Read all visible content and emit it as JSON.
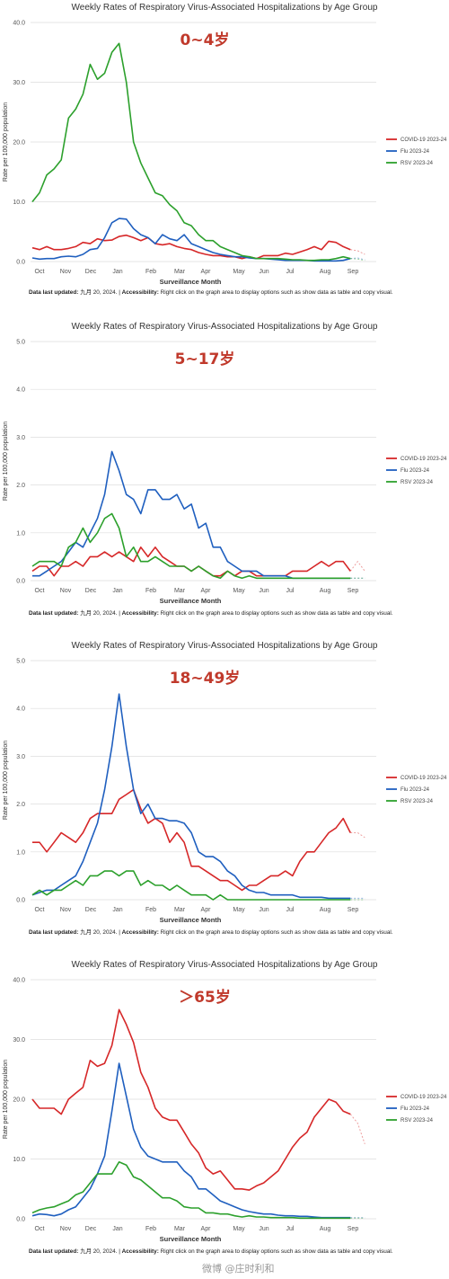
{
  "months": [
    "Oct",
    "Nov",
    "Dec",
    "Jan",
    "Feb",
    "Mar",
    "Apr",
    "May",
    "Jun",
    "Jul",
    "Aug",
    "Sep"
  ],
  "x_axis_label": "Surveillance Month",
  "y_axis_label": "Rate per 100,000 population",
  "footer": {
    "updated_label": "Data last updated:",
    "updated_value": "九月 20, 2024.",
    "separator": "|",
    "accessibility_label": "Accessibility:",
    "accessibility_text": "Right click on the graph area to display options such as show data as table and copy visual."
  },
  "watermark": "微博 @庄时利和",
  "colors": {
    "covid": "#d62728",
    "flu": "#1f5fbf",
    "rsv": "#2ca02c",
    "grid": "#dddddd",
    "title_accent": "#c0392b"
  },
  "chart_data": [
    {
      "type": "line",
      "title": "Weekly Rates of Respiratory Virus-Associated Hospitalizations by Age Group",
      "age_group": "0~4岁",
      "xlabel": "Surveillance Month",
      "ylabel": "Rate per 100,000 population",
      "ylim": [
        0,
        40
      ],
      "yticks": [
        "0.0",
        "10.0",
        "20.0",
        "30.0",
        "40.0"
      ],
      "legend_position": "right",
      "series": [
        {
          "name": "COVID-19 2023-24",
          "key": "covid",
          "values": [
            2.3,
            2.0,
            2.5,
            2.0,
            2.0,
            2.2,
            2.5,
            3.2,
            3.0,
            3.8,
            3.5,
            3.6,
            4.2,
            4.4,
            4.0,
            3.5,
            4.0,
            3.0,
            2.8,
            3.0,
            2.5,
            2.2,
            2.0,
            1.5,
            1.2,
            1.0,
            1.0,
            0.8,
            0.8,
            0.5,
            0.8,
            0.5,
            1.0,
            1.0,
            1.0,
            1.4,
            1.2,
            1.6,
            2.0,
            2.5,
            2.0,
            3.4,
            3.2,
            2.5,
            2.0
          ],
          "tail": [
            1.8,
            1.2
          ]
        },
        {
          "name": "Flu 2023-24",
          "key": "flu",
          "values": [
            0.6,
            0.4,
            0.5,
            0.5,
            0.8,
            0.9,
            0.8,
            1.2,
            2.0,
            2.2,
            4.0,
            6.5,
            7.2,
            7.1,
            5.5,
            4.5,
            4.0,
            3.0,
            4.5,
            3.8,
            3.5,
            4.5,
            3.0,
            2.5,
            2.0,
            1.5,
            1.2,
            1.0,
            0.8,
            0.8,
            0.6,
            0.5,
            0.5,
            0.4,
            0.3,
            0.2,
            0.2,
            0.2,
            0.2,
            0.1,
            0.1,
            0.1,
            0.1,
            0.2,
            0.5
          ],
          "tail": [
            0.6,
            0.3
          ]
        },
        {
          "name": "RSV 2023-24",
          "key": "rsv",
          "values": [
            10.0,
            11.5,
            14.5,
            15.5,
            17.0,
            24.0,
            25.5,
            28.0,
            33.0,
            30.5,
            31.5,
            35.0,
            36.5,
            30.0,
            20.0,
            16.5,
            14.0,
            11.5,
            11.0,
            9.5,
            8.5,
            6.5,
            6.0,
            4.5,
            3.5,
            3.5,
            2.5,
            2.0,
            1.5,
            1.0,
            0.8,
            0.5,
            0.5,
            0.5,
            0.5,
            0.4,
            0.3,
            0.3,
            0.2,
            0.2,
            0.3,
            0.3,
            0.5,
            0.8,
            0.5
          ],
          "tail": [
            0.4,
            0.2
          ]
        }
      ]
    },
    {
      "type": "line",
      "title": "Weekly Rates of Respiratory Virus-Associated Hospitalizations by Age Group",
      "age_group": "5~17岁",
      "xlabel": "Surveillance Month",
      "ylabel": "Rate per 100,000 population",
      "ylim": [
        0,
        5
      ],
      "yticks": [
        "0.0",
        "1.0",
        "2.0",
        "3.0",
        "4.0",
        "5.0"
      ],
      "legend_position": "right",
      "series": [
        {
          "name": "COVID-19 2023-24",
          "key": "covid",
          "values": [
            0.2,
            0.3,
            0.3,
            0.1,
            0.3,
            0.3,
            0.4,
            0.3,
            0.5,
            0.5,
            0.6,
            0.5,
            0.6,
            0.5,
            0.4,
            0.7,
            0.5,
            0.7,
            0.5,
            0.4,
            0.3,
            0.3,
            0.2,
            0.3,
            0.2,
            0.1,
            0.1,
            0.2,
            0.1,
            0.2,
            0.2,
            0.1,
            0.1,
            0.1,
            0.1,
            0.1,
            0.2,
            0.2,
            0.2,
            0.3,
            0.4,
            0.3,
            0.4,
            0.4,
            0.2
          ],
          "tail": [
            0.4,
            0.2
          ]
        },
        {
          "name": "Flu 2023-24",
          "key": "flu",
          "values": [
            0.1,
            0.1,
            0.2,
            0.3,
            0.4,
            0.6,
            0.8,
            0.7,
            1.0,
            1.3,
            1.8,
            2.7,
            2.3,
            1.8,
            1.7,
            1.4,
            1.9,
            1.9,
            1.7,
            1.7,
            1.8,
            1.5,
            1.6,
            1.1,
            1.2,
            0.7,
            0.7,
            0.4,
            0.3,
            0.2,
            0.2,
            0.2,
            0.1,
            0.1,
            0.1,
            0.1,
            0.05,
            0.05,
            0.05,
            0.05,
            0.05,
            0.05,
            0.05,
            0.05,
            0.05
          ],
          "tail": [
            0.05,
            0.05
          ]
        },
        {
          "name": "RSV 2023-24",
          "key": "rsv",
          "values": [
            0.3,
            0.4,
            0.4,
            0.4,
            0.3,
            0.7,
            0.8,
            1.1,
            0.8,
            1.0,
            1.3,
            1.4,
            1.1,
            0.5,
            0.7,
            0.4,
            0.4,
            0.5,
            0.4,
            0.3,
            0.3,
            0.3,
            0.2,
            0.3,
            0.2,
            0.1,
            0.05,
            0.2,
            0.1,
            0.05,
            0.1,
            0.05,
            0.05,
            0.05,
            0.05,
            0.05,
            0.05,
            0.05,
            0.05,
            0.05,
            0.05,
            0.05,
            0.05,
            0.05,
            0.05
          ],
          "tail": [
            0.05,
            0.05
          ]
        }
      ]
    },
    {
      "type": "line",
      "title": "Weekly Rates of Respiratory Virus-Associated Hospitalizations by Age Group",
      "age_group": "18~49岁",
      "xlabel": "Surveillance Month",
      "ylabel": "Rate per 100,000 population",
      "ylim": [
        0,
        5
      ],
      "yticks": [
        "0.0",
        "1.0",
        "2.0",
        "3.0",
        "4.0",
        "5.0"
      ],
      "legend_position": "right",
      "series": [
        {
          "name": "COVID-19 2023-24",
          "key": "covid",
          "values": [
            1.2,
            1.2,
            1.0,
            1.2,
            1.4,
            1.3,
            1.2,
            1.4,
            1.7,
            1.8,
            1.8,
            1.8,
            2.1,
            2.2,
            2.3,
            1.9,
            1.6,
            1.7,
            1.6,
            1.2,
            1.4,
            1.2,
            0.7,
            0.7,
            0.6,
            0.5,
            0.4,
            0.4,
            0.3,
            0.2,
            0.3,
            0.3,
            0.4,
            0.5,
            0.5,
            0.6,
            0.5,
            0.8,
            1.0,
            1.0,
            1.2,
            1.4,
            1.5,
            1.7,
            1.4
          ],
          "tail": [
            1.4,
            1.3
          ]
        },
        {
          "name": "Flu 2023-24",
          "key": "flu",
          "values": [
            0.1,
            0.15,
            0.2,
            0.2,
            0.3,
            0.4,
            0.5,
            0.8,
            1.2,
            1.6,
            2.3,
            3.2,
            4.3,
            3.2,
            2.3,
            1.8,
            2.0,
            1.7,
            1.7,
            1.65,
            1.65,
            1.6,
            1.4,
            1.0,
            0.9,
            0.9,
            0.8,
            0.6,
            0.5,
            0.3,
            0.2,
            0.15,
            0.15,
            0.1,
            0.1,
            0.1,
            0.1,
            0.05,
            0.05,
            0.05,
            0.05,
            0.03,
            0.03,
            0.03,
            0.03
          ],
          "tail": [
            0.03,
            0.03
          ]
        },
        {
          "name": "RSV 2023-24",
          "key": "rsv",
          "values": [
            0.1,
            0.2,
            0.1,
            0.2,
            0.2,
            0.3,
            0.4,
            0.3,
            0.5,
            0.5,
            0.6,
            0.6,
            0.5,
            0.6,
            0.6,
            0.3,
            0.4,
            0.3,
            0.3,
            0.2,
            0.3,
            0.2,
            0.1,
            0.1,
            0.1,
            0.0,
            0.1,
            0.0,
            0.0,
            0.0,
            0.0,
            0.0,
            0.0,
            0.0,
            0.0,
            0.0,
            0.0,
            0.0,
            0.0,
            0.0,
            0.0,
            0.0,
            0.0,
            0.0,
            0.0
          ],
          "tail": [
            0.0,
            0.0
          ]
        }
      ]
    },
    {
      "type": "line",
      "title": "Weekly Rates of Respiratory Virus-Associated Hospitalizations by Age Group",
      "age_group": "＞65岁",
      "xlabel": "Surveillance Month",
      "ylabel": "Rate per 100,000 population",
      "ylim": [
        0,
        40
      ],
      "yticks": [
        "0.0",
        "10.0",
        "20.0",
        "30.0",
        "40.0"
      ],
      "legend_position": "right",
      "series": [
        {
          "name": "COVID-19 2023-24",
          "key": "covid",
          "values": [
            20.0,
            18.5,
            18.5,
            18.5,
            17.5,
            20.0,
            21.0,
            22.0,
            26.5,
            25.5,
            26.0,
            29.0,
            35.0,
            32.5,
            29.5,
            24.5,
            22.0,
            18.5,
            17.0,
            16.5,
            16.5,
            14.5,
            12.5,
            11.0,
            8.5,
            7.5,
            8.0,
            6.5,
            5.0,
            5.0,
            4.8,
            5.5,
            6.0,
            7.0,
            8.0,
            10.0,
            12.0,
            13.5,
            14.5,
            17.0,
            18.5,
            20.0,
            19.5,
            18.0,
            17.5
          ],
          "tail": [
            16.0,
            12.5
          ]
        },
        {
          "name": "Flu 2023-24",
          "key": "flu",
          "values": [
            0.5,
            0.8,
            0.7,
            0.5,
            0.8,
            1.5,
            2.0,
            3.5,
            5.0,
            7.5,
            10.5,
            18.0,
            26.0,
            20.5,
            15.0,
            12.0,
            10.5,
            10.0,
            9.5,
            9.5,
            9.5,
            8.0,
            7.0,
            5.0,
            5.0,
            4.0,
            3.0,
            2.5,
            2.0,
            1.5,
            1.2,
            1.0,
            0.8,
            0.8,
            0.6,
            0.5,
            0.5,
            0.4,
            0.4,
            0.3,
            0.2,
            0.2,
            0.2,
            0.2,
            0.2
          ],
          "tail": [
            0.2,
            0.2
          ]
        },
        {
          "name": "RSV 2023-24",
          "key": "rsv",
          "values": [
            1.0,
            1.5,
            1.8,
            2.0,
            2.5,
            3.0,
            4.0,
            4.5,
            6.0,
            7.5,
            7.5,
            7.5,
            9.5,
            9.0,
            7.0,
            6.5,
            5.5,
            4.5,
            3.5,
            3.5,
            3.0,
            2.0,
            1.8,
            1.8,
            1.0,
            1.0,
            0.8,
            0.8,
            0.5,
            0.3,
            0.5,
            0.3,
            0.3,
            0.2,
            0.2,
            0.2,
            0.2,
            0.1,
            0.1,
            0.1,
            0.1,
            0.1,
            0.1,
            0.1,
            0.1
          ],
          "tail": [
            0.1,
            0.1
          ]
        }
      ]
    }
  ]
}
